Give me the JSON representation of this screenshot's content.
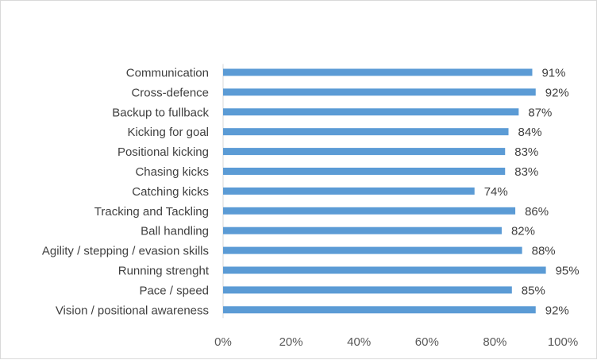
{
  "chart_data": {
    "type": "bar",
    "orientation": "horizontal",
    "categories": [
      "Communication",
      "Cross-defence",
      "Backup to fullback",
      "Kicking for goal",
      "Positional kicking",
      "Chasing kicks",
      "Catching kicks",
      "Tracking and Tackling",
      "Ball handling",
      "Agility / stepping /  evasion skills",
      "Running strenght",
      "Pace / speed",
      "Vision / positional awareness"
    ],
    "values": [
      0.91,
      0.92,
      0.87,
      0.84,
      0.83,
      0.83,
      0.74,
      0.86,
      0.82,
      0.88,
      0.95,
      0.85,
      0.92
    ],
    "value_labels": [
      "91%",
      "92%",
      "87%",
      "84%",
      "83%",
      "83%",
      "74%",
      "86%",
      "82%",
      "88%",
      "95%",
      "85%",
      "92%"
    ],
    "xticks": [
      "0%",
      "20%",
      "40%",
      "60%",
      "80%",
      "100%"
    ],
    "xlim": [
      0,
      1
    ],
    "title": "",
    "xlabel": "",
    "ylabel": "",
    "grid": false,
    "legend": "none",
    "bar_color": "#5b9bd5",
    "axis_color": "#d9d9d9"
  }
}
